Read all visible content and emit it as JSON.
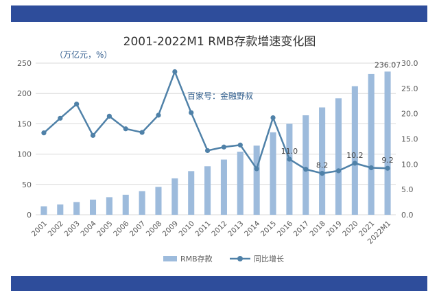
{
  "chart_data": {
    "type": "bar+line",
    "title": "2001-2022M1 RMB存款增速变化图",
    "unit_label": "（万亿元，%）",
    "watermark": "百家号：金融野叔",
    "categories": [
      "2001",
      "2002",
      "2003",
      "2004",
      "2005",
      "2006",
      "2007",
      "2008",
      "2009",
      "2010",
      "2011",
      "2012",
      "2013",
      "2014",
      "2015",
      "2016",
      "2017",
      "2018",
      "2019",
      "2020",
      "2021",
      "2022M1"
    ],
    "series": [
      {
        "name": "RMB存款",
        "type": "bar",
        "axis": "left",
        "color": "#9dbbdc",
        "values": [
          14,
          17,
          21,
          25,
          29,
          33,
          39,
          46,
          60,
          72,
          80,
          91,
          104,
          114,
          136,
          150,
          164,
          177,
          192,
          212,
          232,
          236.07
        ]
      },
      {
        "name": "同比增长",
        "type": "line",
        "axis": "right",
        "color": "#4f81a8",
        "values": [
          16.2,
          19.1,
          21.9,
          15.7,
          19.5,
          17.0,
          16.3,
          19.7,
          28.3,
          20.2,
          12.7,
          13.4,
          13.8,
          9.1,
          19.2,
          11.0,
          9.0,
          8.2,
          8.7,
          10.2,
          9.3,
          9.2
        ]
      }
    ],
    "data_labels": {
      "bar": [
        {
          "index": 21,
          "text": "236.07"
        }
      ],
      "line": [
        {
          "index": 15,
          "text": "11.0"
        },
        {
          "index": 17,
          "text": "8.2"
        },
        {
          "index": 19,
          "text": "10.2"
        },
        {
          "index": 21,
          "text": "9.2"
        }
      ]
    },
    "y_left": {
      "min": 0,
      "max": 250,
      "ticks": [
        0,
        50,
        100,
        150,
        200,
        250
      ]
    },
    "y_right": {
      "min": 0,
      "max": 30,
      "ticks": [
        "0.0",
        "5.0",
        "10.0",
        "15.0",
        "20.0",
        "25.0",
        "30.0"
      ]
    },
    "grid": true,
    "legend_position": "bottom"
  }
}
